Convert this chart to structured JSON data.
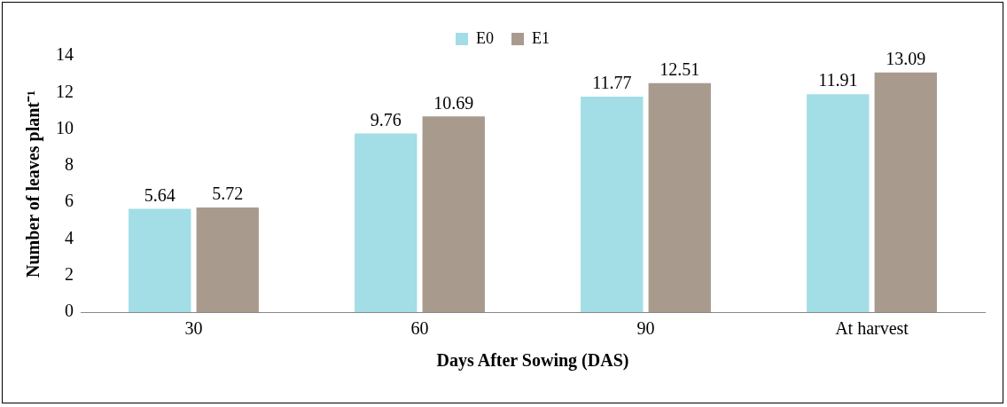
{
  "chart_data": {
    "type": "bar",
    "xlabel": "Days After Sowing (DAS)",
    "ylabel": "Number of leaves plant⁻¹",
    "categories": [
      "30",
      "60",
      "90",
      "At harvest"
    ],
    "series": [
      {
        "name": "E0",
        "color": "#a3dde6",
        "values": [
          5.64,
          9.76,
          11.77,
          11.91
        ]
      },
      {
        "name": "E1",
        "color": "#a89b8e",
        "values": [
          5.72,
          10.69,
          12.51,
          13.09
        ]
      }
    ],
    "ylim": [
      0,
      14
    ],
    "yticks": [
      0,
      2,
      4,
      6,
      8,
      10,
      12,
      14
    ],
    "grid": false,
    "legend": "top",
    "data_labels": true
  }
}
